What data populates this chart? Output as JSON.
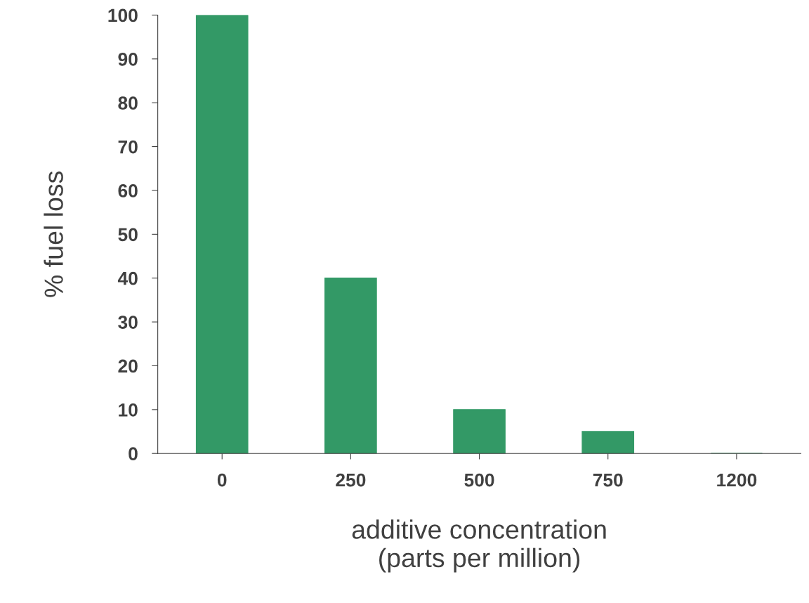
{
  "chart_data": {
    "type": "bar",
    "xlabel": "additive concentration\n(parts per million)",
    "ylabel": "% fuel loss",
    "categories": [
      "0",
      "250",
      "500",
      "750",
      "1200"
    ],
    "values": [
      100,
      40,
      10,
      5,
      0
    ],
    "color": "#339966",
    "ylim": [
      0,
      100
    ],
    "yticks": [
      0,
      10,
      20,
      30,
      40,
      50,
      60,
      70,
      80,
      90,
      100
    ],
    "grid": false
  }
}
